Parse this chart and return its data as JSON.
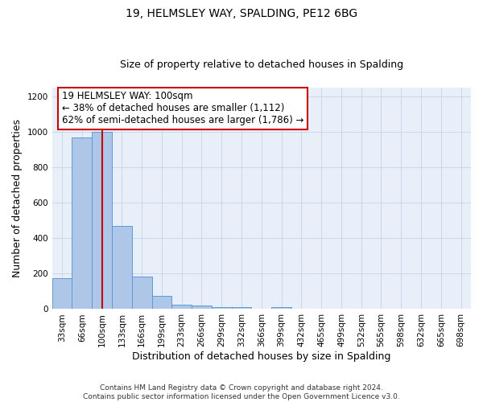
{
  "title": "19, HELMSLEY WAY, SPALDING, PE12 6BG",
  "subtitle": "Size of property relative to detached houses in Spalding",
  "xlabel": "Distribution of detached houses by size in Spalding",
  "ylabel": "Number of detached properties",
  "categories": [
    "33sqm",
    "66sqm",
    "100sqm",
    "133sqm",
    "166sqm",
    "199sqm",
    "233sqm",
    "266sqm",
    "299sqm",
    "332sqm",
    "366sqm",
    "399sqm",
    "432sqm",
    "465sqm",
    "499sqm",
    "532sqm",
    "565sqm",
    "598sqm",
    "632sqm",
    "665sqm",
    "698sqm"
  ],
  "values": [
    175,
    970,
    1000,
    470,
    185,
    75,
    25,
    18,
    13,
    10,
    0,
    12,
    0,
    0,
    0,
    0,
    0,
    0,
    0,
    0,
    0
  ],
  "bar_color": "#aec6e8",
  "bar_edge_color": "#5a9bd5",
  "red_line_index": 2,
  "annotation_text": "19 HELMSLEY WAY: 100sqm\n← 38% of detached houses are smaller (1,112)\n62% of semi-detached houses are larger (1,786) →",
  "annotation_box_color": "#ffffff",
  "annotation_box_edge_color": "#cc0000",
  "red_line_color": "#cc0000",
  "ylim": [
    0,
    1250
  ],
  "yticks": [
    0,
    200,
    400,
    600,
    800,
    1000,
    1200
  ],
  "grid_color": "#c8d8e8",
  "bg_color": "#e8eff8",
  "footer_text": "Contains HM Land Registry data © Crown copyright and database right 2024.\nContains public sector information licensed under the Open Government Licence v3.0.",
  "title_fontsize": 10,
  "subtitle_fontsize": 9,
  "axis_label_fontsize": 9,
  "tick_fontsize": 7.5,
  "annot_fontsize": 8.5
}
